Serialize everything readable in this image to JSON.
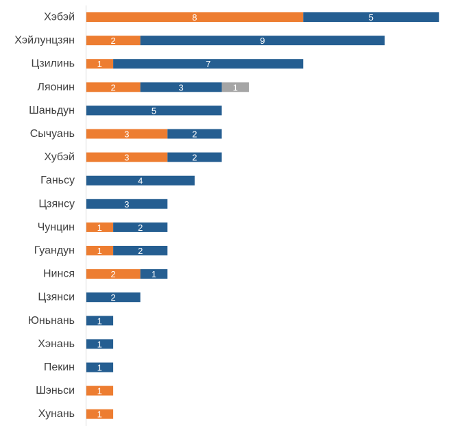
{
  "colors": {
    "series_orange": "#ED7D31",
    "series_blue": "#255E91",
    "series_gray": "#A5A5A5",
    "axis": "#D9D9D9",
    "label_text": "#404040",
    "value_text": "#FFFFFF"
  },
  "chart_data": {
    "type": "bar",
    "orientation": "horizontal",
    "stacked": true,
    "title": "",
    "xlabel": "",
    "ylabel": "",
    "legend": "none",
    "grid": false,
    "xlim": [
      0,
      13
    ],
    "categories": [
      "Хэбэй",
      "Хэйлунцзян",
      "Цзилинь",
      "Ляонин",
      "Шаньдун",
      "Сычуань",
      "Хубэй",
      "Ганьсу",
      "Цзянсу",
      "Чунцин",
      "Гуандун",
      "Нинся",
      "Цзянси",
      "Юньнань",
      "Хэнань",
      "Пекин",
      "Шэньси",
      "Хунань"
    ],
    "series": [
      {
        "color": "#ED7D31",
        "values": [
          8,
          2,
          1,
          2,
          0,
          3,
          3,
          0,
          0,
          1,
          1,
          2,
          0,
          0,
          0,
          0,
          1,
          1
        ]
      },
      {
        "color": "#255E91",
        "values": [
          5,
          9,
          7,
          3,
          5,
          2,
          2,
          4,
          3,
          2,
          2,
          1,
          2,
          1,
          1,
          1,
          0,
          0
        ]
      },
      {
        "color": "#A5A5A5",
        "values": [
          0,
          0,
          0,
          1,
          0,
          0,
          0,
          0,
          0,
          0,
          0,
          0,
          0,
          0,
          0,
          0,
          0,
          0
        ]
      }
    ]
  }
}
